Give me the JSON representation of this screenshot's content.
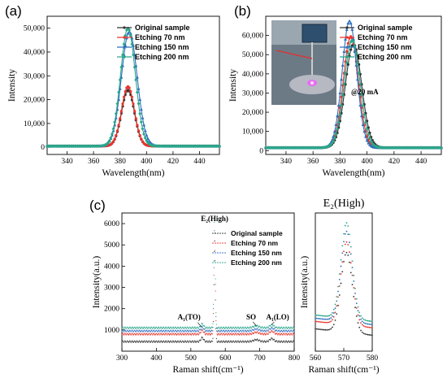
{
  "panels": {
    "a": "(a)",
    "b": "(b)",
    "c": "(c)"
  },
  "colors": {
    "original": "#333333",
    "etch70": "#e8342b",
    "etch150": "#2f6fbf",
    "etch200": "#2aa68a"
  },
  "chart_data": [
    {
      "type": "line",
      "panel": "(a)",
      "xlabel": "Wavelength(nm)",
      "ylabel": "Intensity",
      "xlim": [
        325,
        455
      ],
      "ylim": [
        -3000,
        55000
      ],
      "xticks": [
        "340",
        "360",
        "380",
        "400",
        "420",
        "440"
      ],
      "yticks": [
        "0",
        "10,000",
        "20,000",
        "30,000",
        "40,000",
        "50,000"
      ],
      "legend_position": "top-right",
      "series": [
        {
          "name": "Original sample",
          "peak_x": 386,
          "peak_y": 23500,
          "width": 5.2
        },
        {
          "name": "Etching 70 nm",
          "peak_x": 386,
          "peak_y": 25000,
          "width": 5.2
        },
        {
          "name": "Etching 150 nm",
          "peak_x": 387,
          "peak_y": 48000,
          "width": 6.4
        },
        {
          "name": "Etching 200 nm",
          "peak_x": 386,
          "peak_y": 49500,
          "width": 6.0
        }
      ]
    },
    {
      "type": "line",
      "panel": "(b)",
      "xlabel": "Wavelength(nm)",
      "ylabel": "Intensity",
      "xlim": [
        325,
        455
      ],
      "ylim": [
        -2000,
        70000
      ],
      "xticks": [
        "340",
        "360",
        "380",
        "400",
        "420",
        "440"
      ],
      "yticks": [
        "0",
        "10,000",
        "20,000",
        "30,000",
        "40,000",
        "50,000",
        "60,000"
      ],
      "annotation": "@20 mA",
      "legend_position": "top-right",
      "series": [
        {
          "name": "Original sample",
          "peak_x": 390,
          "peak_y": 54000,
          "width": 6.5
        },
        {
          "name": "Etching 70 nm",
          "peak_x": 388,
          "peak_y": 58000,
          "width": 6.0
        },
        {
          "name": "Etching 150 nm",
          "peak_x": 387,
          "peak_y": 66000,
          "width": 5.8
        },
        {
          "name": "Etching 200 nm",
          "peak_x": 389,
          "peak_y": 56000,
          "width": 6.3
        }
      ]
    },
    {
      "type": "scatter",
      "panel": "(c)",
      "xlabel": "Raman shift(cm⁻¹)",
      "ylabel": "Intensity(a.u.)",
      "xlim": [
        300,
        800
      ],
      "ylim": [
        0,
        6500
      ],
      "xticks": [
        "300",
        "400",
        "500",
        "600",
        "700",
        "800"
      ],
      "yticks": [
        "1000",
        "2000",
        "3000",
        "4000",
        "5000",
        "6000"
      ],
      "annotations": [
        "E₂(High)",
        "A₁(TO)",
        "SO",
        "A₁(LO)"
      ],
      "legend_position": "top-right",
      "series": [
        {
          "name": "Original sample",
          "baseline": 450,
          "peak_y": 4800
        },
        {
          "name": "Etching 70 nm",
          "baseline": 800,
          "peak_y": 5300
        },
        {
          "name": "Etching 150 nm",
          "baseline": 950,
          "peak_y": 5800
        },
        {
          "name": "Etching 200 nm",
          "baseline": 1100,
          "peak_y": 6200
        }
      ]
    },
    {
      "type": "scatter",
      "panel": "inset",
      "title": "E₂(High)",
      "xlabel": "Raman shift(cm⁻¹)",
      "ylabel": "Intensity(a.u.)",
      "xlim": [
        560,
        580
      ],
      "xticks": [
        "560",
        "570",
        "580"
      ]
    }
  ]
}
